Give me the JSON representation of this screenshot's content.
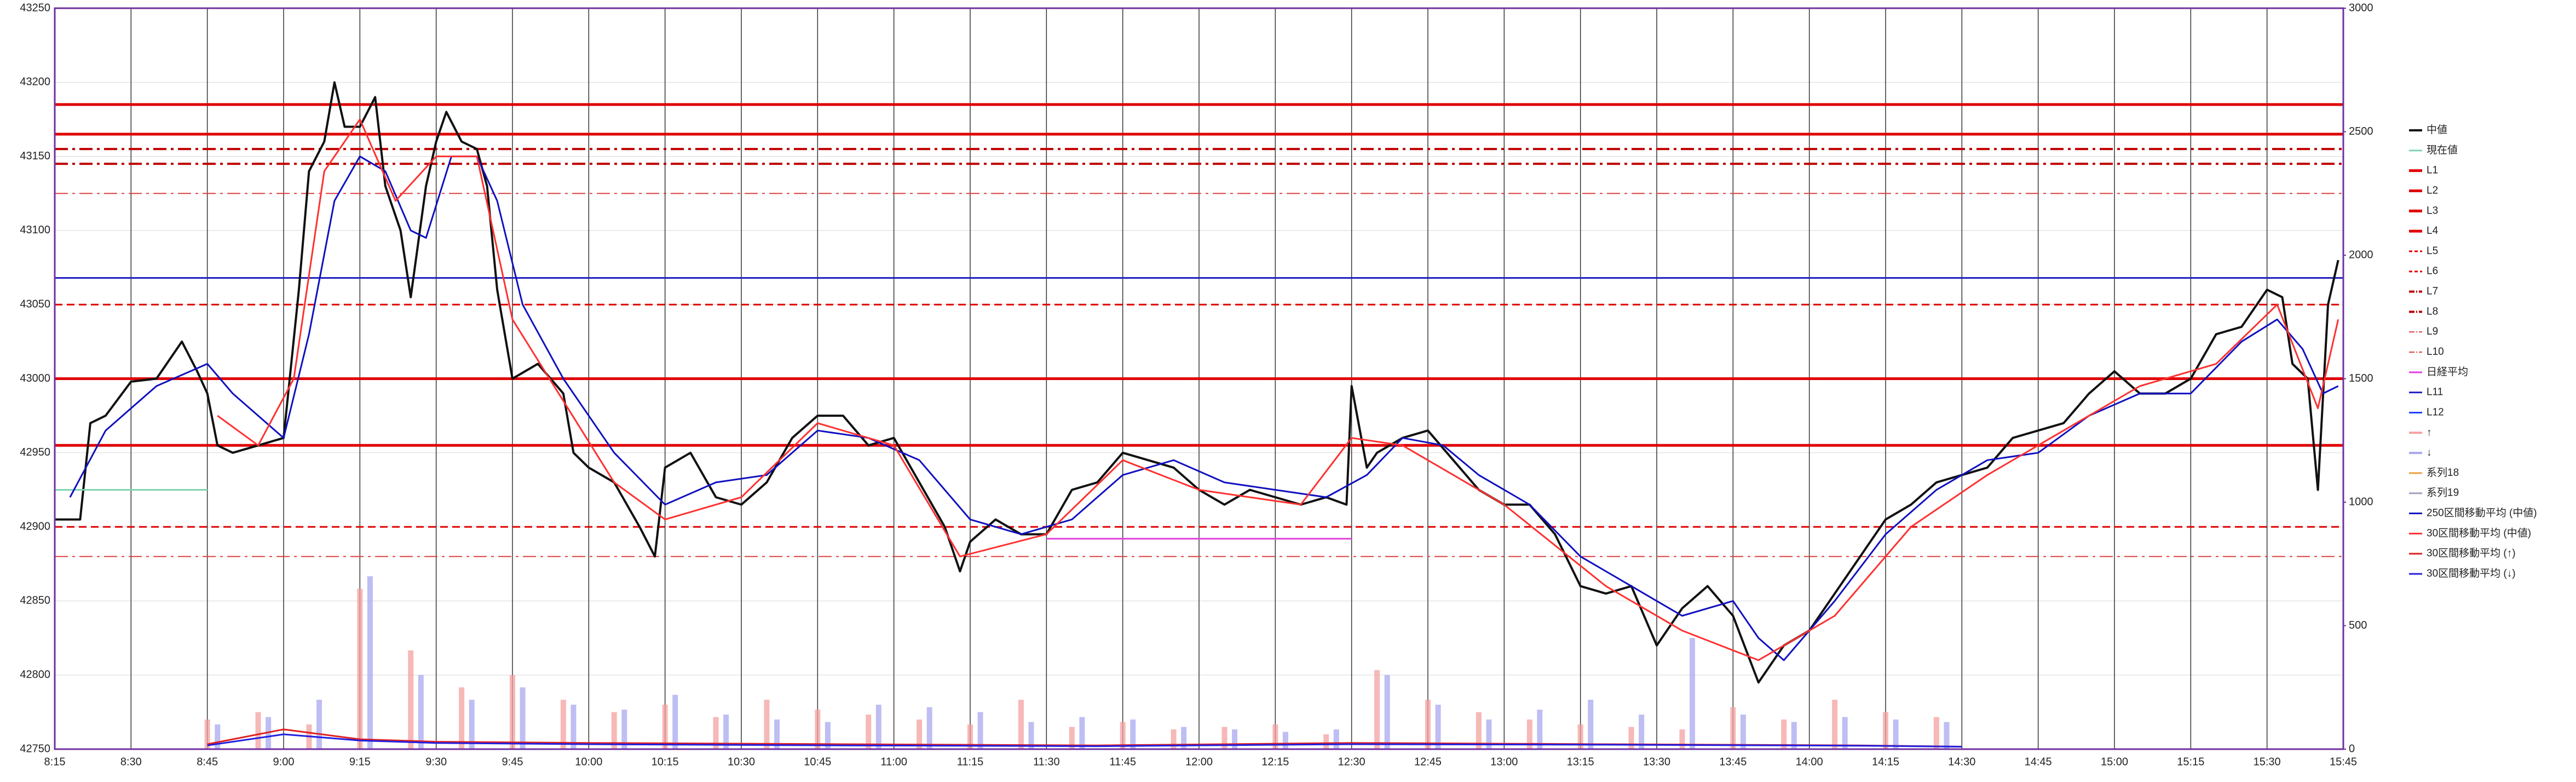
{
  "chart_data": {
    "type": "line",
    "grid": true,
    "xlim": [
      495,
      945
    ],
    "ylim": [
      42750,
      43250
    ],
    "y2lim": [
      0,
      3000
    ],
    "xticks": [
      {
        "value": 495,
        "label": "8:15"
      },
      {
        "value": 510,
        "label": "8:30"
      },
      {
        "value": 525,
        "label": "8:45"
      },
      {
        "value": 540,
        "label": "9:00"
      },
      {
        "value": 555,
        "label": "9:15"
      },
      {
        "value": 570,
        "label": "9:30"
      },
      {
        "value": 585,
        "label": "9:45"
      },
      {
        "value": 600,
        "label": "10:00"
      },
      {
        "value": 615,
        "label": "10:15"
      },
      {
        "value": 630,
        "label": "10:30"
      },
      {
        "value": 645,
        "label": "10:45"
      },
      {
        "value": 660,
        "label": "11:00"
      },
      {
        "value": 675,
        "label": "11:15"
      },
      {
        "value": 690,
        "label": "11:30"
      },
      {
        "value": 705,
        "label": "11:45"
      },
      {
        "value": 720,
        "label": "12:00"
      },
      {
        "value": 735,
        "label": "12:15"
      },
      {
        "value": 750,
        "label": "12:30"
      },
      {
        "value": 765,
        "label": "12:45"
      },
      {
        "value": 780,
        "label": "13:00"
      },
      {
        "value": 795,
        "label": "13:15"
      },
      {
        "value": 810,
        "label": "13:30"
      },
      {
        "value": 825,
        "label": "13:45"
      },
      {
        "value": 840,
        "label": "14:00"
      },
      {
        "value": 855,
        "label": "14:15"
      },
      {
        "value": 870,
        "label": "14:30"
      },
      {
        "value": 885,
        "label": "14:45"
      },
      {
        "value": 900,
        "label": "15:00"
      },
      {
        "value": 915,
        "label": "15:15"
      },
      {
        "value": 930,
        "label": "15:30"
      },
      {
        "value": 945,
        "label": "15:45"
      }
    ],
    "yticks": [
      42750,
      42800,
      42850,
      42900,
      42950,
      43000,
      43050,
      43100,
      43150,
      43200,
      43250
    ],
    "y2ticks": [
      0,
      500,
      1000,
      1500,
      2000,
      2500,
      3000
    ],
    "series": [
      {
        "name": "中値",
        "color": "#111111",
        "style": "solid",
        "width": 4,
        "x": [
          495,
          500,
          502,
          505,
          510,
          515,
          520,
          523,
          525,
          527,
          530,
          535,
          540,
          543,
          545,
          548,
          550,
          552,
          555,
          558,
          560,
          563,
          565,
          568,
          570,
          572,
          575,
          578,
          580,
          582,
          585,
          590,
          595,
          597,
          600,
          605,
          610,
          613,
          615,
          620,
          625,
          630,
          635,
          640,
          645,
          650,
          655,
          660,
          665,
          670,
          673,
          675,
          680,
          685,
          690,
          695,
          700,
          705,
          710,
          715,
          720,
          725,
          730,
          735,
          740,
          745,
          749,
          750,
          753,
          755,
          760,
          765,
          770,
          775,
          780,
          785,
          790,
          795,
          800,
          805,
          810,
          815,
          820,
          825,
          830,
          835,
          840,
          845,
          850,
          855,
          860,
          865,
          870,
          875,
          880,
          885,
          890,
          895,
          900,
          905,
          910,
          915,
          920,
          925,
          930,
          933,
          935,
          938,
          940,
          942,
          944
        ],
        "values": [
          42905,
          42905,
          42970,
          42975,
          42998,
          43000,
          43025,
          43005,
          42990,
          42955,
          42950,
          42955,
          42960,
          43060,
          43140,
          43160,
          43200,
          43170,
          43170,
          43190,
          43130,
          43100,
          43055,
          43130,
          43160,
          43180,
          43160,
          43155,
          43130,
          43060,
          43000,
          43010,
          42990,
          42950,
          42940,
          42930,
          42900,
          42880,
          42940,
          42950,
          42920,
          42915,
          42930,
          42960,
          42975,
          42975,
          42955,
          42960,
          42930,
          42900,
          42870,
          42890,
          42905,
          42895,
          42895,
          42925,
          42930,
          42950,
          42945,
          42940,
          42925,
          42915,
          42925,
          42920,
          42915,
          42920,
          42915,
          42995,
          42940,
          42950,
          42960,
          42965,
          42945,
          42925,
          42915,
          42915,
          42895,
          42860,
          42855,
          42860,
          42820,
          42845,
          42860,
          42840,
          42795,
          42820,
          42830,
          42855,
          42880,
          42905,
          42915,
          42930,
          42935,
          42940,
          42960,
          42965,
          42970,
          42990,
          43005,
          42990,
          42990,
          43000,
          43030,
          43035,
          43060,
          43055,
          43010,
          43000,
          42925,
          43050,
          43080
        ]
      },
      {
        "name": "現在値",
        "color": "#7fd4b0",
        "style": "solid",
        "width": 3,
        "x": [
          495,
          525
        ],
        "values": [
          42925,
          42925
        ]
      },
      {
        "name": "L1",
        "color": "#e00000",
        "style": "solid",
        "width": 5,
        "value": 43185
      },
      {
        "name": "L2",
        "color": "#e00000",
        "style": "solid",
        "width": 5,
        "value": 43165
      },
      {
        "name": "L3",
        "color": "#e00000",
        "style": "solid",
        "width": 5,
        "value": 43000
      },
      {
        "name": "L4",
        "color": "#e00000",
        "style": "solid",
        "width": 5,
        "value": 42955
      },
      {
        "name": "L5",
        "color": "#e00000",
        "style": "dash",
        "width": 3,
        "value": 43050
      },
      {
        "name": "L6",
        "color": "#e00000",
        "style": "dash",
        "width": 3,
        "value": 42900
      },
      {
        "name": "L7",
        "color": "#c00000",
        "style": "dashdot",
        "width": 4,
        "value": 43155
      },
      {
        "name": "L8",
        "color": "#c00000",
        "style": "dashdot",
        "width": 4,
        "value": 43145
      },
      {
        "name": "L9",
        "color": "#e04040",
        "style": "dashdot",
        "width": 2,
        "value": 43125
      },
      {
        "name": "L10",
        "color": "#e04040",
        "style": "dashdot",
        "width": 2,
        "value": 42880
      },
      {
        "name": "日経平均",
        "color": "#e040e0",
        "style": "solid",
        "width": 3,
        "x": [
          690,
          750
        ],
        "values": [
          42892,
          42892
        ]
      },
      {
        "name": "L11",
        "color": "#2020c0",
        "style": "solid",
        "width": 3,
        "value": 43068
      },
      {
        "name": "L12",
        "color": "#2040ff",
        "style": "solid",
        "width": 3,
        "value": null
      },
      {
        "name": "↑",
        "color": "#f4a0a0",
        "kind": "bar",
        "axis": "y2",
        "x": [
          525,
          535,
          545,
          555,
          565,
          575,
          585,
          595,
          605,
          615,
          625,
          635,
          645,
          655,
          665,
          675,
          685,
          695,
          705,
          715,
          725,
          735,
          745,
          755,
          765,
          775,
          785,
          795,
          805,
          815,
          825,
          835,
          845,
          855,
          865
        ],
        "values": [
          120,
          150,
          100,
          650,
          400,
          250,
          300,
          200,
          150,
          180,
          130,
          200,
          160,
          140,
          120,
          100,
          200,
          90,
          110,
          80,
          90,
          100,
          60,
          320,
          200,
          150,
          120,
          100,
          90,
          80,
          170,
          120,
          200,
          150,
          130
        ]
      },
      {
        "name": "↓",
        "color": "#a8a8f0",
        "kind": "bar",
        "axis": "y2",
        "x": [
          527,
          537,
          547,
          557,
          567,
          577,
          587,
          597,
          607,
          617,
          627,
          637,
          647,
          657,
          667,
          677,
          687,
          697,
          707,
          717,
          727,
          737,
          747,
          757,
          767,
          777,
          787,
          797,
          807,
          817,
          827,
          837,
          847,
          857,
          867
        ],
        "values": [
          100,
          130,
          200,
          700,
          300,
          200,
          250,
          180,
          160,
          220,
          140,
          120,
          110,
          180,
          170,
          150,
          110,
          130,
          120,
          90,
          80,
          70,
          80,
          300,
          180,
          120,
          160,
          200,
          140,
          450,
          140,
          110,
          130,
          120,
          110
        ]
      },
      {
        "name": "系列18",
        "color": "#f0a040",
        "style": "solid",
        "width": 3,
        "x": [],
        "values": []
      },
      {
        "name": "系列19",
        "color": "#a0a0c0",
        "style": "solid",
        "width": 3,
        "x": [],
        "values": []
      },
      {
        "name": "250区間移動平均 (中値)",
        "color": "#1010c0",
        "style": "solid",
        "width": 3,
        "x": [
          498,
          505,
          515,
          525,
          530,
          540,
          545,
          550,
          555,
          560,
          565,
          568,
          573,
          578,
          582,
          587,
          595,
          605,
          615,
          625,
          635,
          645,
          655,
          665,
          675,
          685,
          695,
          705,
          715,
          725,
          735,
          745,
          753,
          760,
          768,
          775,
          785,
          795,
          805,
          815,
          825,
          830,
          835,
          845,
          855,
          865,
          875,
          885,
          895,
          905,
          915,
          925,
          932,
          937,
          941,
          944
        ],
        "values": [
          42920,
          42965,
          42995,
          43010,
          42990,
          42960,
          43030,
          43120,
          43150,
          43140,
          43100,
          43095,
          43150,
          43150,
          43120,
          43050,
          43000,
          42950,
          42915,
          42930,
          42935,
          42965,
          42960,
          42945,
          42905,
          42895,
          42905,
          42935,
          42945,
          42930,
          42925,
          42920,
          42935,
          42960,
          42955,
          42935,
          42915,
          42880,
          42860,
          42840,
          42850,
          42825,
          42810,
          42850,
          42895,
          42925,
          42945,
          42950,
          42975,
          42990,
          42990,
          43025,
          43040,
          43020,
          42990,
          42995
        ]
      },
      {
        "name": "30区間移動平均 (中値)",
        "color": "#ff3030",
        "style": "solid",
        "width": 3,
        "x": [
          527,
          535,
          542,
          548,
          555,
          562,
          570,
          578,
          585,
          595,
          605,
          615,
          630,
          645,
          660,
          673,
          690,
          705,
          720,
          740,
          750,
          760,
          780,
          800,
          815,
          830,
          845,
          860,
          875,
          890,
          905,
          920,
          932,
          940,
          944
        ],
        "values": [
          42975,
          42955,
          43000,
          43140,
          43175,
          43120,
          43150,
          43150,
          43040,
          42985,
          42930,
          42905,
          42920,
          42970,
          42955,
          42880,
          42895,
          42945,
          42925,
          42915,
          42960,
          42955,
          42915,
          42860,
          42830,
          42810,
          42840,
          42900,
          42935,
          42965,
          42995,
          43010,
          43050,
          42980,
          43040
        ]
      },
      {
        "name": "30区間移動平均 (↑)",
        "color": "#e02020",
        "style": "solid",
        "width": 3,
        "axis": "y2",
        "x": [
          525,
          540,
          555,
          570,
          600,
          650,
          700,
          750,
          800,
          850,
          870
        ],
        "values": [
          20,
          80,
          40,
          30,
          25,
          20,
          15,
          25,
          20,
          15,
          10
        ]
      },
      {
        "name": "30区間移動平均 (↓)",
        "color": "#2020e0",
        "style": "solid",
        "width": 3,
        "axis": "y2",
        "x": [
          525,
          540,
          555,
          570,
          600,
          650,
          700,
          750,
          800,
          850,
          870
        ],
        "values": [
          15,
          60,
          35,
          25,
          20,
          15,
          12,
          20,
          18,
          14,
          10
        ]
      }
    ]
  }
}
